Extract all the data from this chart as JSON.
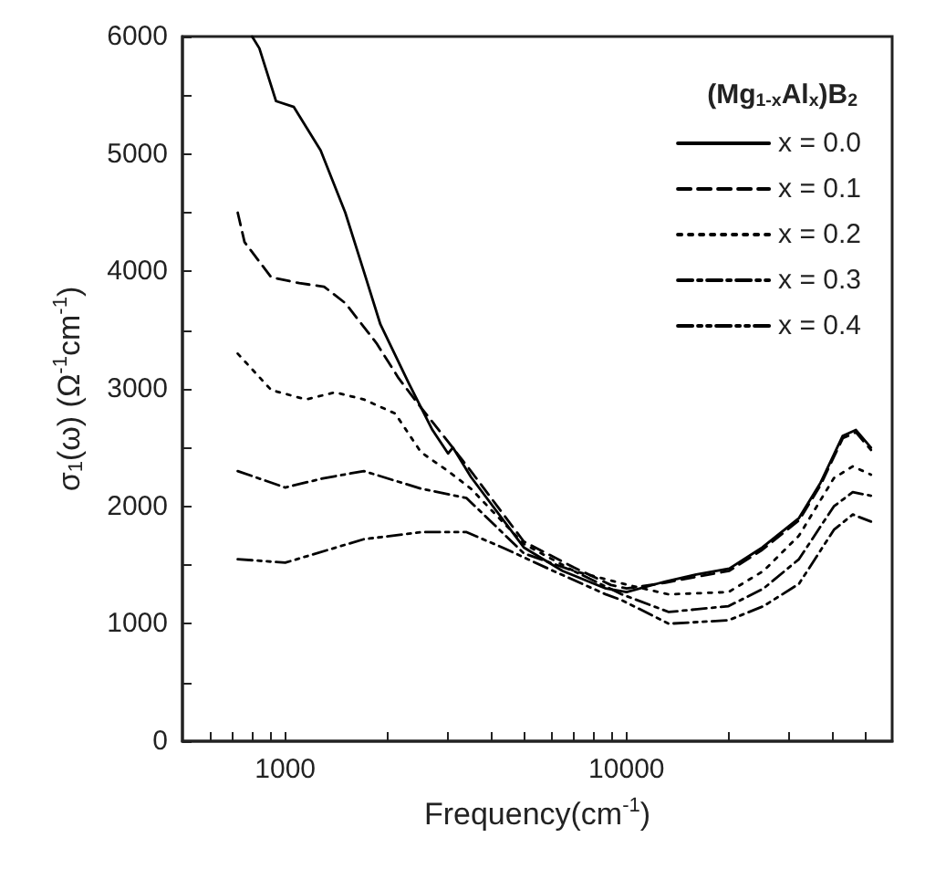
{
  "chart_data": {
    "type": "line",
    "xlabel": "Frequency(cm$^{-1}$)",
    "ylabel": "σ$_{1}$(ω) (Ω$^{-1}$cm$^{-1}$)",
    "legend_title": "(Mg$_{1-x}$Al$_{x}$)B$_{2}$",
    "log": "x",
    "grid": false,
    "legend": "top right",
    "marker": "none",
    "xlim": [
      500,
      60000
    ],
    "ylim": [
      0,
      6000
    ],
    "xticks": [
      {
        "value": 600,
        "label": null
      },
      {
        "value": 700,
        "label": null
      },
      {
        "value": 800,
        "label": null
      },
      {
        "value": 900,
        "label": null
      },
      1000,
      {
        "value": 2000,
        "label": null
      },
      {
        "value": 3000,
        "label": null
      },
      {
        "value": 4000,
        "label": null
      },
      {
        "value": 5000,
        "label": null
      },
      {
        "value": 6000,
        "label": null
      },
      {
        "value": 7000,
        "label": null
      },
      {
        "value": 8000,
        "label": null
      },
      {
        "value": 9000,
        "label": null
      },
      10000,
      {
        "value": 20000,
        "label": null
      },
      {
        "value": 30000,
        "label": null
      },
      {
        "value": 40000,
        "label": null
      },
      {
        "value": 50000,
        "label": null
      }
    ],
    "yticks": [
      0,
      {
        "value": 500,
        "label": null
      },
      1000,
      {
        "value": 1500,
        "label": null
      },
      2000,
      {
        "value": 2500,
        "label": null
      },
      3000,
      {
        "value": 3500,
        "label": null
      },
      4000,
      {
        "value": 4500,
        "label": null
      },
      5000,
      {
        "value": 5500,
        "label": null
      },
      6000
    ],
    "series": [
      {
        "name": "x = 0.0",
        "color": "#000000",
        "line_style": "solid",
        "x": [
          800,
          840,
          940,
          1060,
          1270,
          1500,
          1700,
          1900,
          2300,
          2700,
          3000,
          3100,
          3500,
          5000,
          6500,
          8700,
          10000,
          13000,
          16000,
          20000,
          25000,
          32000,
          37000,
          43000,
          47000,
          52000
        ],
        "values": [
          6000,
          5900,
          5450,
          5400,
          5030,
          4500,
          4000,
          3550,
          3050,
          2650,
          2450,
          2500,
          2250,
          1650,
          1450,
          1300,
          1270,
          1360,
          1420,
          1470,
          1650,
          1900,
          2200,
          2600,
          2650,
          2500
        ]
      },
      {
        "name": "x = 0.1",
        "color": "#000000",
        "line_style": "dashed",
        "x": [
          726,
          760,
          910,
          1100,
          1300,
          1500,
          1850,
          2150,
          2500,
          3000,
          3500,
          5000,
          7000,
          9000,
          10000,
          13000,
          16000,
          20000,
          25000,
          32000,
          37000,
          43000,
          47000,
          52000
        ],
        "values": [
          4500,
          4250,
          3950,
          3900,
          3870,
          3730,
          3390,
          3090,
          2840,
          2550,
          2300,
          1700,
          1480,
          1330,
          1300,
          1350,
          1400,
          1450,
          1630,
          1880,
          2180,
          2580,
          2630,
          2480
        ]
      },
      {
        "name": "x = 0.2",
        "color": "#000000",
        "line_style": "dotted",
        "x": [
          726,
          910,
          1150,
          1400,
          1700,
          2100,
          2500,
          3000,
          3500,
          5000,
          7000,
          10100,
          13300,
          19900,
          25200,
          32000,
          40500,
          46000,
          52000
        ],
        "values": [
          3300,
          2990,
          2910,
          2970,
          2910,
          2790,
          2460,
          2300,
          2150,
          1680,
          1450,
          1330,
          1250,
          1270,
          1450,
          1750,
          2240,
          2340,
          2270
        ]
      },
      {
        "name": "x = 0.3",
        "color": "#000000",
        "line_style": "dashdot",
        "x": [
          726,
          1000,
          1300,
          1700,
          2500,
          3400,
          5000,
          7000,
          9700,
          13300,
          19900,
          25200,
          32000,
          40500,
          46000,
          52000
        ],
        "values": [
          2300,
          2160,
          2240,
          2300,
          2150,
          2070,
          1600,
          1450,
          1250,
          1100,
          1150,
          1300,
          1550,
          2000,
          2120,
          2090
        ]
      },
      {
        "name": "x = 0.4",
        "color": "#000000",
        "line_style": "dashdotdot",
        "x": [
          726,
          1000,
          1700,
          2500,
          3400,
          4400,
          6100,
          8700,
          9700,
          13300,
          19900,
          25200,
          32000,
          40500,
          46000,
          52000
        ],
        "values": [
          1550,
          1520,
          1720,
          1780,
          1780,
          1640,
          1450,
          1250,
          1200,
          1000,
          1030,
          1150,
          1340,
          1800,
          1930,
          1870
        ]
      }
    ]
  }
}
